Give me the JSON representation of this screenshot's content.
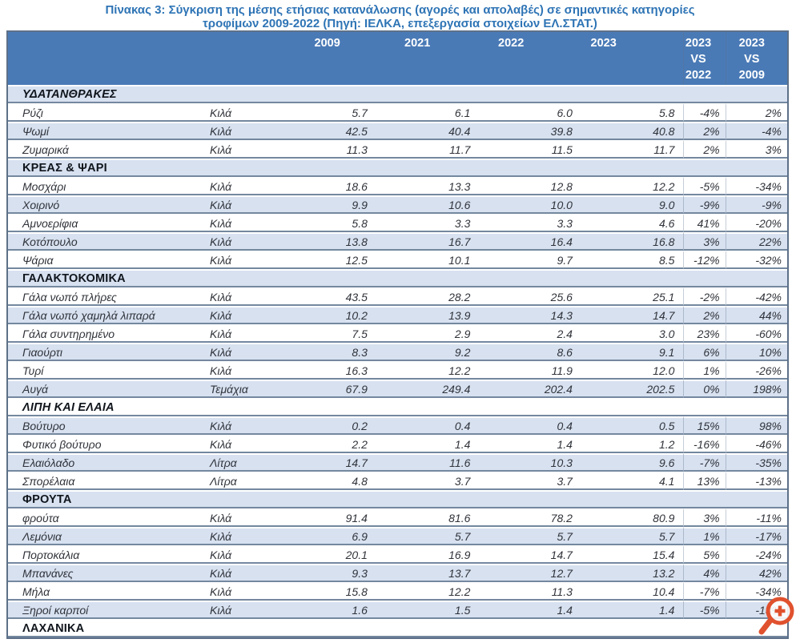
{
  "title": {
    "line1": "Πίνακας 3: Σύγκριση της μέσης ετήσιας κατανάλωσης (αγορές και απολαβές)  σε σημαντικές κατηγορίες",
    "line2": "τροφίμων 2009-2022 (Πηγή: ΙΕΛΚΑ, επεξεργασία στοιχείων ΕΛ.ΣΤΑΤ.)"
  },
  "table": {
    "header": {
      "y2009": "2009",
      "y2021": "2021",
      "y2022": "2022",
      "y2023": "2023",
      "vs2022": [
        "2023",
        "VS",
        "2022"
      ],
      "vs2009": [
        "2023",
        "VS",
        "2009"
      ]
    },
    "rows": [
      {
        "type": "section",
        "label": "ΥΔΑΤΑΝΘΡΑΚΕΣ",
        "italic": true
      },
      {
        "type": "item",
        "name": "Ρύζι",
        "unit": "Κιλά",
        "v2009": "5.7",
        "v2021": "6.1",
        "v2022": "6.0",
        "v2023": "5.8",
        "vs2022": "-4%",
        "vs2009": "2%"
      },
      {
        "type": "item",
        "name": "Ψωμί",
        "unit": "Κιλά",
        "v2009": "42.5",
        "v2021": "40.4",
        "v2022": "39.8",
        "v2023": "40.8",
        "vs2022": "2%",
        "vs2009": "-4%"
      },
      {
        "type": "item",
        "name": "Ζυμαρικά",
        "unit": "Κιλά",
        "v2009": "11.3",
        "v2021": "11.7",
        "v2022": "11.5",
        "v2023": "11.7",
        "vs2022": "2%",
        "vs2009": "3%"
      },
      {
        "type": "section",
        "label": "ΚΡΕΑΣ & ΨΑΡΙ",
        "italic": false
      },
      {
        "type": "item",
        "name": "Μοσχάρι",
        "unit": "Κιλά",
        "v2009": "18.6",
        "v2021": "13.3",
        "v2022": "12.8",
        "v2023": "12.2",
        "vs2022": "-5%",
        "vs2009": "-34%"
      },
      {
        "type": "item",
        "name": "Χοιρινό",
        "unit": "Κιλά",
        "v2009": "9.9",
        "v2021": "10.6",
        "v2022": "10.0",
        "v2023": "9.0",
        "vs2022": "-9%",
        "vs2009": "-9%"
      },
      {
        "type": "item",
        "name": "Αμνοερίφια",
        "unit": "Κιλά",
        "v2009": "5.8",
        "v2021": "3.3",
        "v2022": "3.3",
        "v2023": "4.6",
        "vs2022": "41%",
        "vs2009": "-20%"
      },
      {
        "type": "item",
        "name": "Κοτόπουλο",
        "unit": "Κιλά",
        "v2009": "13.8",
        "v2021": "16.7",
        "v2022": "16.4",
        "v2023": "16.8",
        "vs2022": "3%",
        "vs2009": "22%"
      },
      {
        "type": "item",
        "name": "Ψάρια",
        "unit": "Κιλά",
        "v2009": "12.5",
        "v2021": "10.1",
        "v2022": "9.7",
        "v2023": "8.5",
        "vs2022": "-12%",
        "vs2009": "-32%"
      },
      {
        "type": "section",
        "label": "ΓΑΛΑΚΤΟΚΟΜΙΚΑ",
        "italic": false
      },
      {
        "type": "item",
        "name": "Γάλα νωπό  πλήρες",
        "unit": "Κιλά",
        "v2009": "43.5",
        "v2021": "28.2",
        "v2022": "25.6",
        "v2023": "25.1",
        "vs2022": "-2%",
        "vs2009": "-42%"
      },
      {
        "type": "item",
        "name": "Γάλα νωπό  χαμηλά λιπαρά",
        "unit": "Κιλά",
        "v2009": "10.2",
        "v2021": "13.9",
        "v2022": "14.3",
        "v2023": "14.7",
        "vs2022": "2%",
        "vs2009": "44%"
      },
      {
        "type": "item",
        "name": "Γάλα συντηρημένο",
        "unit": "Κιλά",
        "v2009": "7.5",
        "v2021": "2.9",
        "v2022": "2.4",
        "v2023": "3.0",
        "vs2022": "23%",
        "vs2009": "-60%"
      },
      {
        "type": "item",
        "name": "Γιαούρτι",
        "unit": "Κιλά",
        "v2009": "8.3",
        "v2021": "9.2",
        "v2022": "8.6",
        "v2023": "9.1",
        "vs2022": "6%",
        "vs2009": "10%"
      },
      {
        "type": "item",
        "name": "Τυρί",
        "unit": "Κιλά",
        "v2009": "16.3",
        "v2021": "12.2",
        "v2022": "11.9",
        "v2023": "12.0",
        "vs2022": "1%",
        "vs2009": "-26%"
      },
      {
        "type": "item",
        "name": "Αυγά",
        "unit": "Τεμάχια",
        "v2009": "67.9",
        "v2021": "249.4",
        "v2022": "202.4",
        "v2023": "202.5",
        "vs2022": "0%",
        "vs2009": "198%"
      },
      {
        "type": "section",
        "label": "ΛΙΠΗ ΚΑΙ ΕΛΑΙΑ",
        "italic": true
      },
      {
        "type": "item",
        "name": "Βούτυρο",
        "unit": "Κιλά",
        "v2009": "0.2",
        "v2021": "0.4",
        "v2022": "0.4",
        "v2023": "0.5",
        "vs2022": "15%",
        "vs2009": "98%"
      },
      {
        "type": "item",
        "name": "Φυτικό βούτυρο",
        "unit": "Κιλά",
        "v2009": "2.2",
        "v2021": "1.4",
        "v2022": "1.4",
        "v2023": "1.2",
        "vs2022": "-16%",
        "vs2009": "-46%"
      },
      {
        "type": "item",
        "name": "Ελαιόλαδο",
        "unit": "Λίτρα",
        "v2009": "14.7",
        "v2021": "11.6",
        "v2022": "10.3",
        "v2023": "9.6",
        "vs2022": "-7%",
        "vs2009": "-35%"
      },
      {
        "type": "item",
        "name": "Σπορέλαια",
        "unit": "Λίτρα",
        "v2009": "4.8",
        "v2021": "3.7",
        "v2022": "3.7",
        "v2023": "4.1",
        "vs2022": "13%",
        "vs2009": "-13%"
      },
      {
        "type": "section",
        "label": "ΦΡΟΥΤΑ",
        "italic": false
      },
      {
        "type": "item",
        "name": "φρούτα",
        "unit": "Κιλά",
        "v2009": "91.4",
        "v2021": "81.6",
        "v2022": "78.2",
        "v2023": "80.9",
        "vs2022": "3%",
        "vs2009": "-11%"
      },
      {
        "type": "item",
        "name": "Λεμόνια",
        "unit": "Κιλά",
        "v2009": "6.9",
        "v2021": "5.7",
        "v2022": "5.7",
        "v2023": "5.7",
        "vs2022": "1%",
        "vs2009": "-17%"
      },
      {
        "type": "item",
        "name": "Πορτοκάλια",
        "unit": "Κιλά",
        "v2009": "20.1",
        "v2021": "16.9",
        "v2022": "14.7",
        "v2023": "15.4",
        "vs2022": "5%",
        "vs2009": "-24%"
      },
      {
        "type": "item",
        "name": "Μπανάνες",
        "unit": "Κιλά",
        "v2009": "9.3",
        "v2021": "13.7",
        "v2022": "12.7",
        "v2023": "13.2",
        "vs2022": "4%",
        "vs2009": "42%"
      },
      {
        "type": "item",
        "name": "Μήλα",
        "unit": "Κιλά",
        "v2009": "15.8",
        "v2021": "12.2",
        "v2022": "11.3",
        "v2023": "10.4",
        "vs2022": "-7%",
        "vs2009": "-34%"
      },
      {
        "type": "item",
        "name": "Ξηροί καρποί",
        "unit": "Κιλά",
        "v2009": "1.6",
        "v2021": "1.5",
        "v2022": "1.4",
        "v2023": "1.4",
        "vs2022": "-5%",
        "vs2009": "-13%"
      },
      {
        "type": "section",
        "label": "ΛΑΧΑΝΙΚΑ",
        "italic": false
      }
    ]
  },
  "icons": {
    "zoom_in": "magnifier-plus-icon"
  },
  "colors": {
    "header_bg": "#4a7ab6",
    "band": "#d7e1f0",
    "row_border": "#74889f",
    "title_text": "#2e74b5",
    "icon": "#e0512e"
  }
}
